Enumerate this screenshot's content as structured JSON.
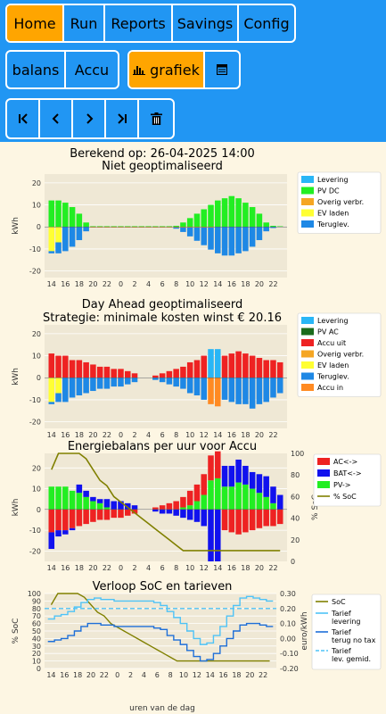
{
  "menu": {
    "items": [
      "Home",
      "Run",
      "Reports",
      "Savings",
      "Config"
    ],
    "active": "Home"
  },
  "sub_menu": {
    "items": [
      "balans",
      "Accu"
    ]
  },
  "view_toggle": {
    "grafiek_label": "grafiek",
    "icon_chart": "bar-chart-icon",
    "icon_table": "table-icon"
  },
  "nav_buttons": [
    "first-icon",
    "prev-icon",
    "next-icon",
    "last-icon",
    "delete-icon"
  ],
  "colors": {
    "levering": "#29b6f6",
    "pv_dc": "#22ee22",
    "pv_ac": "#1b6b1b",
    "overig": "#f5a623",
    "ev": "#ffff33",
    "terug": "#1e88e5",
    "accu_uit": "#ee2222",
    "accu_in": "#ff8a22",
    "bat": "#1111ee",
    "soc": "#808000",
    "bg": "#efe8d5"
  },
  "chart_data": [
    {
      "type": "bar",
      "title": "Berekend op: 26-04-2025 14:00",
      "subtitle": "Niet geoptimaliseerd",
      "ylabel": "kWh",
      "ylim": [
        -23,
        24
      ],
      "yticks": [
        -20,
        -10,
        0,
        10,
        20
      ],
      "xticklabels": [
        "14",
        "16",
        "18",
        "20",
        "22",
        "0",
        "2",
        "4",
        "6",
        "8",
        "10",
        "12",
        "14",
        "16",
        "18",
        "20",
        "22"
      ],
      "hours": [
        14,
        15,
        16,
        17,
        18,
        19,
        20,
        21,
        22,
        23,
        0,
        1,
        2,
        3,
        4,
        5,
        6,
        7,
        8,
        9,
        10,
        11,
        12,
        13,
        14,
        15,
        16,
        17,
        18,
        19,
        20,
        21,
        22,
        23
      ],
      "legend": [
        "Levering",
        "PV DC",
        "Overig verbr.",
        "EV laden",
        "Teruglev."
      ],
      "series": [
        {
          "name": "PV DC",
          "values": [
            12,
            12,
            11,
            9,
            6,
            2,
            0.3,
            0.3,
            0.3,
            0.3,
            0.3,
            0.3,
            0.3,
            0.3,
            0.3,
            0.3,
            0.3,
            0.3,
            0.5,
            2,
            4,
            6,
            8,
            10,
            12,
            13,
            14,
            13,
            11,
            9,
            6,
            2,
            0.5,
            0.3
          ]
        },
        {
          "name": "Overig verbr.",
          "values": [
            0,
            0,
            0,
            0,
            0,
            0,
            -0.3,
            -0.3,
            -0.3,
            -0.3,
            -0.3,
            -0.3,
            -0.3,
            -0.3,
            -0.3,
            -0.3,
            -0.3,
            -0.3,
            -0.3,
            -0.3,
            -0.3,
            -0.3,
            -0.3,
            -0.3,
            0,
            0,
            0,
            0,
            0,
            0,
            0,
            0,
            0,
            0
          ]
        },
        {
          "name": "EV laden",
          "values": [
            -11,
            -7,
            0,
            0,
            0,
            0,
            0,
            0,
            0,
            0,
            0,
            0,
            0,
            0,
            0,
            0,
            0,
            0,
            0,
            0,
            0,
            0,
            0,
            0,
            0,
            0,
            0,
            0,
            0,
            0,
            0,
            0,
            0,
            0
          ]
        },
        {
          "name": "Teruglev.",
          "values": [
            -1,
            -5,
            -11,
            -9,
            -6,
            -2,
            0,
            0,
            0,
            0,
            0,
            0,
            0,
            0,
            0,
            0,
            0,
            0,
            -0.5,
            -2,
            -4,
            -6,
            -8,
            -10,
            -12,
            -13,
            -13,
            -12,
            -11,
            -9,
            -6,
            -2,
            -0.5,
            0
          ]
        }
      ]
    },
    {
      "type": "bar",
      "title": "Day Ahead geoptimaliseerd",
      "subtitle": "Strategie: minimale kosten winst € 20.16",
      "ylabel": "kWh",
      "ylim": [
        -23,
        24
      ],
      "yticks": [
        -20,
        -10,
        0,
        10,
        20
      ],
      "xticklabels": [
        "14",
        "16",
        "18",
        "20",
        "22",
        "0",
        "2",
        "4",
        "6",
        "8",
        "10",
        "12",
        "14",
        "16",
        "18",
        "20",
        "22"
      ],
      "legend": [
        "Levering",
        "PV AC",
        "Accu uit",
        "Overig verbr.",
        "EV laden",
        "Teruglev.",
        "Accu in"
      ],
      "series": [
        {
          "name": "Accu uit",
          "values": [
            11,
            10,
            10,
            8,
            8,
            7,
            6,
            5,
            5,
            4,
            4,
            3,
            2,
            0,
            0,
            1,
            2,
            3,
            4,
            5,
            7,
            8,
            10,
            0,
            0,
            10,
            11,
            12,
            11,
            10,
            9,
            8,
            8,
            7
          ]
        },
        {
          "name": "Levering",
          "values": [
            0,
            0,
            0,
            0,
            0,
            0,
            0,
            0,
            0,
            0,
            0,
            0,
            0,
            0,
            0,
            0,
            0,
            0,
            0,
            0,
            0,
            0,
            0,
            13,
            13,
            0,
            0,
            0,
            0,
            0,
            0,
            0,
            0,
            0
          ]
        },
        {
          "name": "EV laden",
          "values": [
            -11,
            -7,
            0,
            0,
            0,
            0,
            0,
            0,
            0,
            0,
            0,
            0,
            0,
            0,
            0,
            0,
            0,
            0,
            0,
            0,
            0,
            0,
            0,
            0,
            0,
            0,
            0,
            0,
            0,
            0,
            0,
            0,
            0,
            0
          ]
        },
        {
          "name": "Teruglev.",
          "values": [
            -1,
            -4,
            -11,
            -9,
            -8,
            -7,
            -6,
            -5,
            -5,
            -4,
            -4,
            -3,
            -2,
            0,
            0,
            -1,
            -2,
            -3,
            -4,
            -5,
            -7,
            -8,
            -10,
            0,
            0,
            -10,
            -11,
            -12,
            -12,
            -14,
            -12,
            -11,
            -9,
            -7
          ]
        },
        {
          "name": "Accu in",
          "values": [
            0,
            0,
            0,
            0,
            0,
            0,
            0,
            0,
            0,
            0,
            0,
            0,
            0,
            0,
            0,
            0,
            0,
            0,
            0,
            0,
            0,
            0,
            0,
            -12,
            -13,
            0,
            0,
            0,
            0,
            0,
            0,
            0,
            0,
            0
          ]
        }
      ]
    },
    {
      "type": "bar",
      "title": "Energiebalans per uur voor Accu",
      "ylabel": "kWh",
      "y2label": "% SoC",
      "ylim": [
        -25,
        27
      ],
      "yticks": [
        -20,
        -10,
        0,
        10,
        20
      ],
      "y2ticks": [
        0,
        20,
        40,
        60,
        80,
        100
      ],
      "xticklabels": [
        "14",
        "16",
        "18",
        "20",
        "22",
        "0",
        "2",
        "4",
        "6",
        "8",
        "10",
        "12",
        "14",
        "16",
        "18",
        "20",
        "22"
      ],
      "legend": [
        "AC<->",
        "BAT<->",
        "PV->",
        "% SoC"
      ],
      "series": [
        {
          "name": "PV->",
          "values": [
            11,
            11,
            11,
            9,
            8,
            6,
            4,
            3,
            1,
            0,
            0,
            0,
            0,
            0,
            0,
            0,
            0,
            0,
            0,
            1,
            2,
            4,
            7,
            14,
            15,
            11,
            11,
            13,
            12,
            10,
            8,
            6,
            3,
            0
          ]
        },
        {
          "name": "AC<->",
          "values": [
            -11,
            -10,
            -10,
            -9,
            -8,
            -7,
            -6,
            -5,
            -5,
            -4,
            -4,
            -3,
            -2,
            0,
            0,
            1,
            2,
            3,
            4,
            5,
            7,
            8,
            10,
            12,
            13,
            -10,
            -11,
            -12,
            -11,
            -10,
            -9,
            -8,
            -8,
            -7
          ]
        },
        {
          "name": "BAT<->",
          "values": [
            -8,
            -3,
            -2,
            -1,
            4,
            3,
            2,
            2,
            4,
            4,
            4,
            3,
            2,
            0,
            0,
            -1,
            -2,
            -2,
            -3,
            -4,
            -5,
            -6,
            -8,
            -25,
            -25,
            10,
            10,
            11,
            9,
            8,
            9,
            10,
            8,
            7
          ]
        },
        {
          "name": "% SoC",
          "values": [
            85,
            100,
            100,
            100,
            100,
            95,
            85,
            75,
            70,
            60,
            55,
            50,
            45,
            40,
            35,
            30,
            25,
            20,
            15,
            10,
            10,
            10,
            10,
            10,
            10,
            10,
            10,
            10,
            10,
            10,
            10,
            10,
            10,
            10
          ]
        }
      ]
    },
    {
      "type": "line",
      "title": "Verloop SoC en tarieven",
      "ylabel": "% SoC",
      "y2label": "euro/kWh",
      "xlabel": "uren van de dag",
      "ylim": [
        0,
        100
      ],
      "y2lim": [
        -0.2,
        0.3
      ],
      "yticks": [
        0,
        10,
        20,
        30,
        40,
        50,
        60,
        70,
        80,
        90,
        100
      ],
      "y2ticks": [
        "-0.20",
        "-0.10",
        "0.00",
        "0.10",
        "0.20",
        "0.30"
      ],
      "xticklabels": [
        "14",
        "16",
        "18",
        "20",
        "22",
        "0",
        "2",
        "4",
        "6",
        "8",
        "10",
        "12",
        "14",
        "16",
        "18",
        "20",
        "22"
      ],
      "legend": [
        "SoC",
        "Tarief levering",
        "Tarief terug no tax",
        "Tarief lev. gemid."
      ],
      "series": [
        {
          "name": "SoC",
          "values": [
            85,
            100,
            100,
            100,
            100,
            95,
            85,
            75,
            70,
            60,
            55,
            50,
            45,
            40,
            35,
            30,
            25,
            20,
            15,
            10,
            10,
            10,
            10,
            10,
            10,
            10,
            10,
            10,
            10,
            10,
            10,
            10,
            10,
            10
          ]
        },
        {
          "name": "Tarief levering",
          "values": [
            0.13,
            0.15,
            0.16,
            0.18,
            0.21,
            0.24,
            0.26,
            0.27,
            0.26,
            0.26,
            0.25,
            0.25,
            0.25,
            0.25,
            0.25,
            0.25,
            0.24,
            0.22,
            0.18,
            0.14,
            0.1,
            0.05,
            0.0,
            -0.04,
            -0.03,
            0.02,
            0.08,
            0.15,
            0.22,
            0.27,
            0.28,
            0.27,
            0.26,
            0.25
          ]
        },
        {
          "name": "Tarief terug no tax",
          "values": [
            -0.02,
            -0.01,
            0.0,
            0.02,
            0.05,
            0.08,
            0.1,
            0.1,
            0.09,
            0.09,
            0.08,
            0.08,
            0.08,
            0.08,
            0.08,
            0.08,
            0.07,
            0.06,
            0.02,
            -0.01,
            -0.04,
            -0.08,
            -0.12,
            -0.15,
            -0.14,
            -0.1,
            -0.05,
            0.0,
            0.05,
            0.09,
            0.1,
            0.1,
            0.09,
            0.08
          ]
        },
        {
          "name": "Tarief lev. gemid.",
          "values": [
            0.2,
            0.2,
            0.2,
            0.2,
            0.2,
            0.2,
            0.2,
            0.2,
            0.2,
            0.2,
            0.2,
            0.2,
            0.2,
            0.2,
            0.2,
            0.2,
            0.2,
            0.2,
            0.2,
            0.2,
            0.2,
            0.2,
            0.2,
            0.2,
            0.2,
            0.2,
            0.2,
            0.2,
            0.2,
            0.2,
            0.2,
            0.2,
            0.2,
            0.2
          ]
        }
      ]
    }
  ]
}
